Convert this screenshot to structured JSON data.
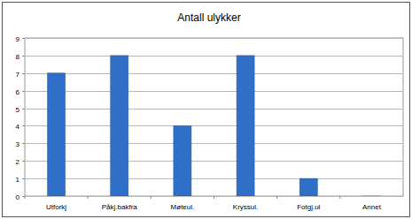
{
  "chart_data": {
    "type": "bar",
    "title": "Antall ulykker",
    "categories": [
      "Utforkj",
      "Påkj.bakfra",
      "Møteul.",
      "Kryssul.",
      "Fotgj.ul",
      "Annet"
    ],
    "values": [
      7,
      8,
      4,
      8,
      1,
      0
    ],
    "color": "#2f6fc8",
    "ylim": [
      0,
      9
    ],
    "yticks": [
      0,
      1,
      2,
      3,
      4,
      5,
      6,
      7,
      8,
      9
    ],
    "grid": true
  }
}
